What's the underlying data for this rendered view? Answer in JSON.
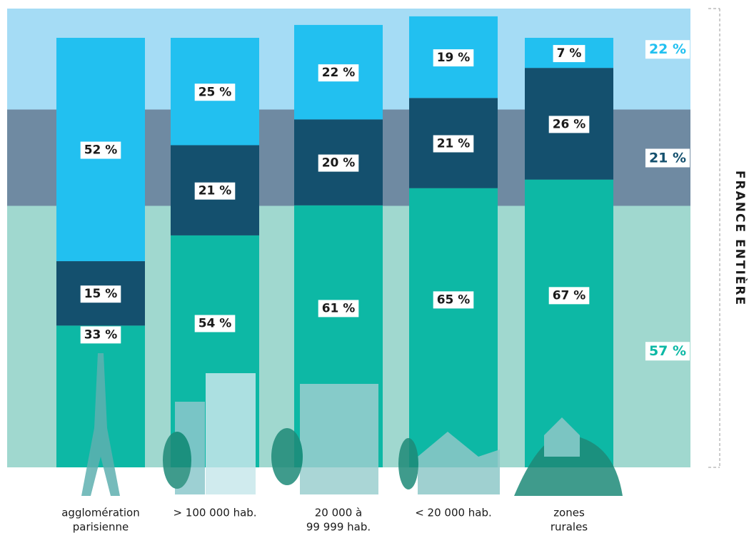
{
  "chart_data": {
    "type": "stacked-bar",
    "categories": [
      [
        "agglomération",
        "parisienne"
      ],
      [
        "> 100 000 hab."
      ],
      [
        "20 000 à",
        "99 999 hab."
      ],
      [
        "< 20 000 hab."
      ],
      [
        "zones",
        "rurales"
      ]
    ],
    "series": [
      {
        "color": "#0db8a5",
        "band_color": "#a0d8cf",
        "values": [
          33,
          54,
          61,
          65,
          67
        ],
        "value_labels": [
          "33 %",
          "54 %",
          "61 %",
          "65 %",
          "67 %"
        ]
      },
      {
        "color": "#14506e",
        "band_color": "#6f8aa2",
        "values": [
          15,
          21,
          20,
          21,
          26
        ],
        "value_labels": [
          "15 %",
          "21 %",
          "20 %",
          "21 %",
          "26 %"
        ]
      },
      {
        "color": "#22c0f0",
        "band_color": "#a5dcf5",
        "values": [
          52,
          25,
          22,
          19,
          7
        ],
        "value_labels": [
          "52 %",
          "25 %",
          "22 %",
          "19 %",
          "7 %"
        ]
      }
    ],
    "overall": {
      "title": "FRANCE ENTIÈRE",
      "values": [
        57,
        21,
        22
      ],
      "value_labels": [
        "57 %",
        "21 %",
        "22 %"
      ]
    },
    "ylim": [
      0,
      100
    ]
  }
}
